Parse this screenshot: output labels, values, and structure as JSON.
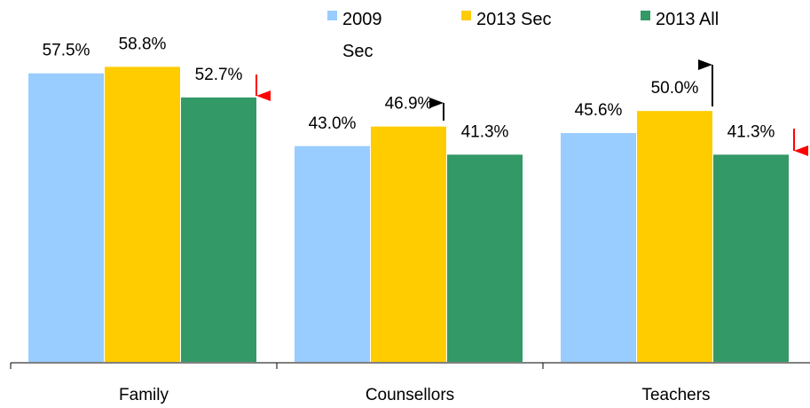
{
  "chart_data": {
    "type": "bar",
    "categories": [
      "Family",
      "Counsellors",
      "Teachers"
    ],
    "series": [
      {
        "name": "2009 Sec",
        "color": "#99ccff",
        "values": [
          57.5,
          43.0,
          45.6
        ],
        "value_labels": [
          "57.5%",
          "43.0%",
          "45.6%"
        ]
      },
      {
        "name": "2013 Sec",
        "color": "#ffcc00",
        "values": [
          58.8,
          46.9,
          50.0
        ],
        "value_labels": [
          "58.8%",
          "46.9%",
          "50.0%"
        ]
      },
      {
        "name": "2013 All",
        "color": "#339966",
        "values": [
          52.7,
          41.3,
          41.3
        ],
        "value_labels": [
          "52.7%",
          "41.3%",
          "41.3%"
        ]
      }
    ],
    "ylim": [
      0,
      70
    ]
  }
}
